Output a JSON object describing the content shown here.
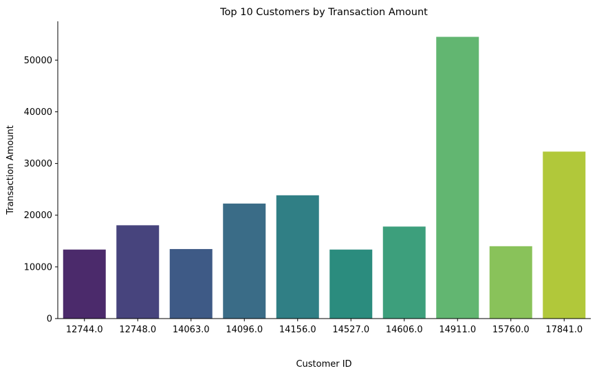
{
  "chart_data": {
    "type": "bar",
    "title": "Top 10 Customers by Transaction Amount",
    "xlabel": "Customer ID",
    "ylabel": "Transaction Amount",
    "categories": [
      "12744.0",
      "12748.0",
      "14063.0",
      "14096.0",
      "14156.0",
      "14527.0",
      "14606.0",
      "14911.0",
      "15760.0",
      "17841.0"
    ],
    "values": [
      13350,
      18050,
      13450,
      22250,
      23850,
      13350,
      17800,
      54500,
      14000,
      32300
    ],
    "ylim": [
      0,
      57500
    ],
    "yticks": [
      0,
      10000,
      20000,
      30000,
      40000,
      50000
    ],
    "ytick_labels": [
      "0",
      "10000",
      "20000",
      "30000",
      "40000",
      "50000"
    ],
    "grid": false,
    "colors": [
      "#4b2a6b",
      "#47447d",
      "#3e5a86",
      "#3a6c87",
      "#307f85",
      "#2b8c7e",
      "#3d9f7c",
      "#62b671",
      "#89c25a",
      "#b1c83a"
    ]
  }
}
